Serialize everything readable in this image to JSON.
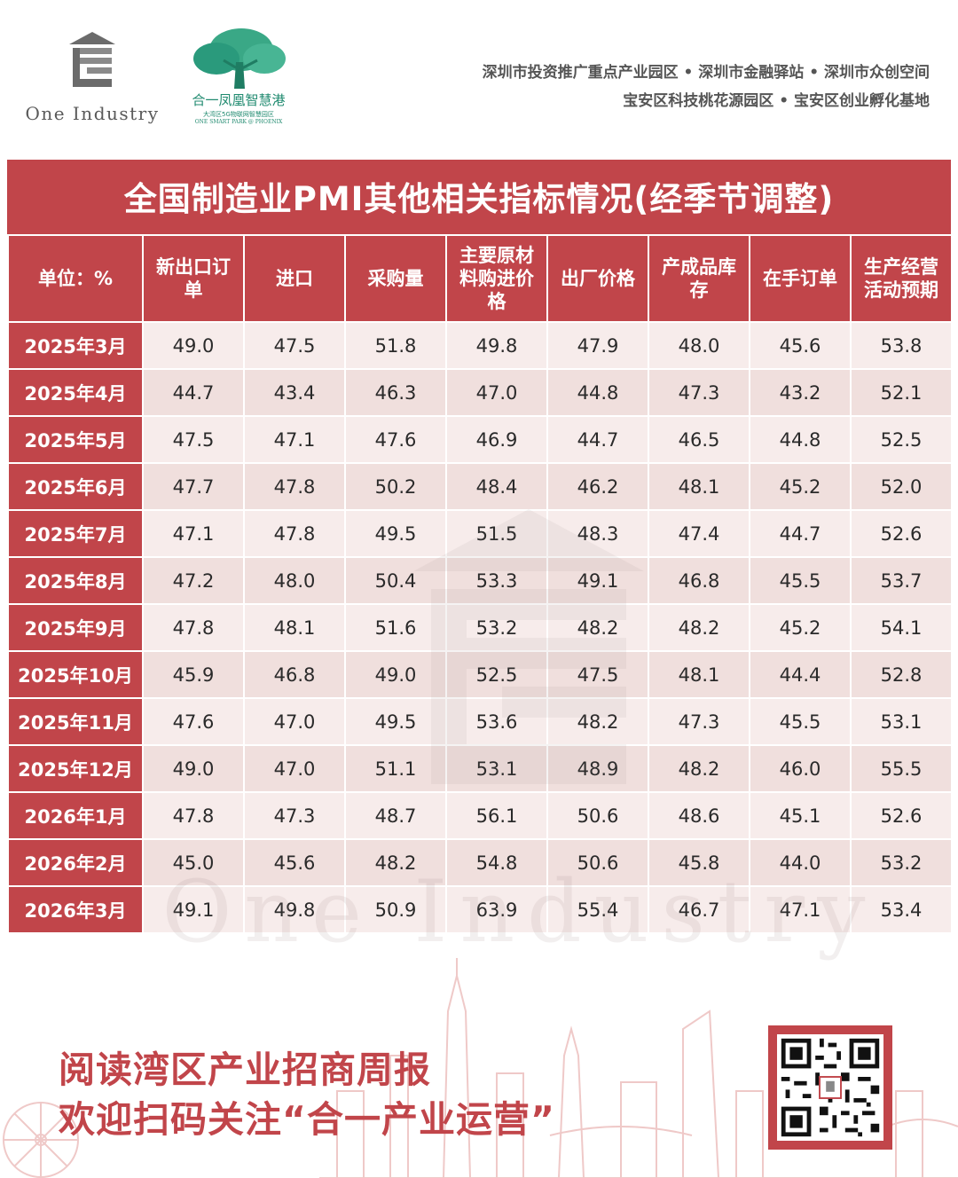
{
  "brand": {
    "one_industry": "One Industry",
    "phoenix_name": "合一凤凰智慧港",
    "phoenix_sub": "大湾区5G物联网智慧园区",
    "phoenix_en": "ONE SMART PARK @ PHOENIX",
    "tree_color": "#2a9a7c",
    "accent": "#c1454a"
  },
  "parks": {
    "line1": "深圳市投资推广重点产业园区 • 深圳市金融驿站 • 深圳市众创空间",
    "line2": "宝安区科技桃花源园区 • 宝安区创业孵化基地"
  },
  "table": {
    "title": "全国制造业PMI其他相关指标情况(经季节调整)",
    "unit_label": "单位：%",
    "headers": [
      "新出口订单",
      "进口",
      "采购量",
      "主要原材料购进价格",
      "出厂价格",
      "产成品库存",
      "在手订单",
      "生产经营活动预期"
    ],
    "rows": [
      {
        "month": "2025年3月",
        "values": [
          "49.0",
          "47.5",
          "51.8",
          "49.8",
          "47.9",
          "48.0",
          "45.6",
          "53.8"
        ]
      },
      {
        "month": "2025年4月",
        "values": [
          "44.7",
          "43.4",
          "46.3",
          "47.0",
          "44.8",
          "47.3",
          "43.2",
          "52.1"
        ]
      },
      {
        "month": "2025年5月",
        "values": [
          "47.5",
          "47.1",
          "47.6",
          "46.9",
          "44.7",
          "46.5",
          "44.8",
          "52.5"
        ]
      },
      {
        "month": "2025年6月",
        "values": [
          "47.7",
          "47.8",
          "50.2",
          "48.4",
          "46.2",
          "48.1",
          "45.2",
          "52.0"
        ]
      },
      {
        "month": "2025年7月",
        "values": [
          "47.1",
          "47.8",
          "49.5",
          "51.5",
          "48.3",
          "47.4",
          "44.7",
          "52.6"
        ]
      },
      {
        "month": "2025年8月",
        "values": [
          "47.2",
          "48.0",
          "50.4",
          "53.3",
          "49.1",
          "46.8",
          "45.5",
          "53.7"
        ]
      },
      {
        "month": "2025年9月",
        "values": [
          "47.8",
          "48.1",
          "51.6",
          "53.2",
          "48.2",
          "48.2",
          "45.2",
          "54.1"
        ]
      },
      {
        "month": "2025年10月",
        "values": [
          "45.9",
          "46.8",
          "49.0",
          "52.5",
          "47.5",
          "48.1",
          "44.4",
          "52.8"
        ]
      },
      {
        "month": "2025年11月",
        "values": [
          "47.6",
          "47.0",
          "49.5",
          "53.6",
          "48.2",
          "47.3",
          "45.5",
          "53.1"
        ]
      },
      {
        "month": "2025年12月",
        "values": [
          "49.0",
          "47.0",
          "51.1",
          "53.1",
          "48.9",
          "48.2",
          "46.0",
          "55.5"
        ]
      },
      {
        "month": "2026年1月",
        "values": [
          "47.8",
          "47.3",
          "48.7",
          "56.1",
          "50.6",
          "48.6",
          "45.1",
          "52.6"
        ]
      },
      {
        "month": "2026年2月",
        "values": [
          "45.0",
          "45.6",
          "48.2",
          "54.8",
          "50.6",
          "45.8",
          "44.0",
          "53.2"
        ]
      },
      {
        "month": "2026年3月",
        "values": [
          "49.1",
          "49.8",
          "50.9",
          "63.9",
          "55.4",
          "46.7",
          "47.1",
          "53.4"
        ]
      }
    ]
  },
  "watermark": {
    "text": "One Industry"
  },
  "footer": {
    "line1": "阅读湾区产业招商周报",
    "line2": "欢迎扫码关注“合一产业运营”",
    "qr_icon": "qr-code-icon"
  }
}
